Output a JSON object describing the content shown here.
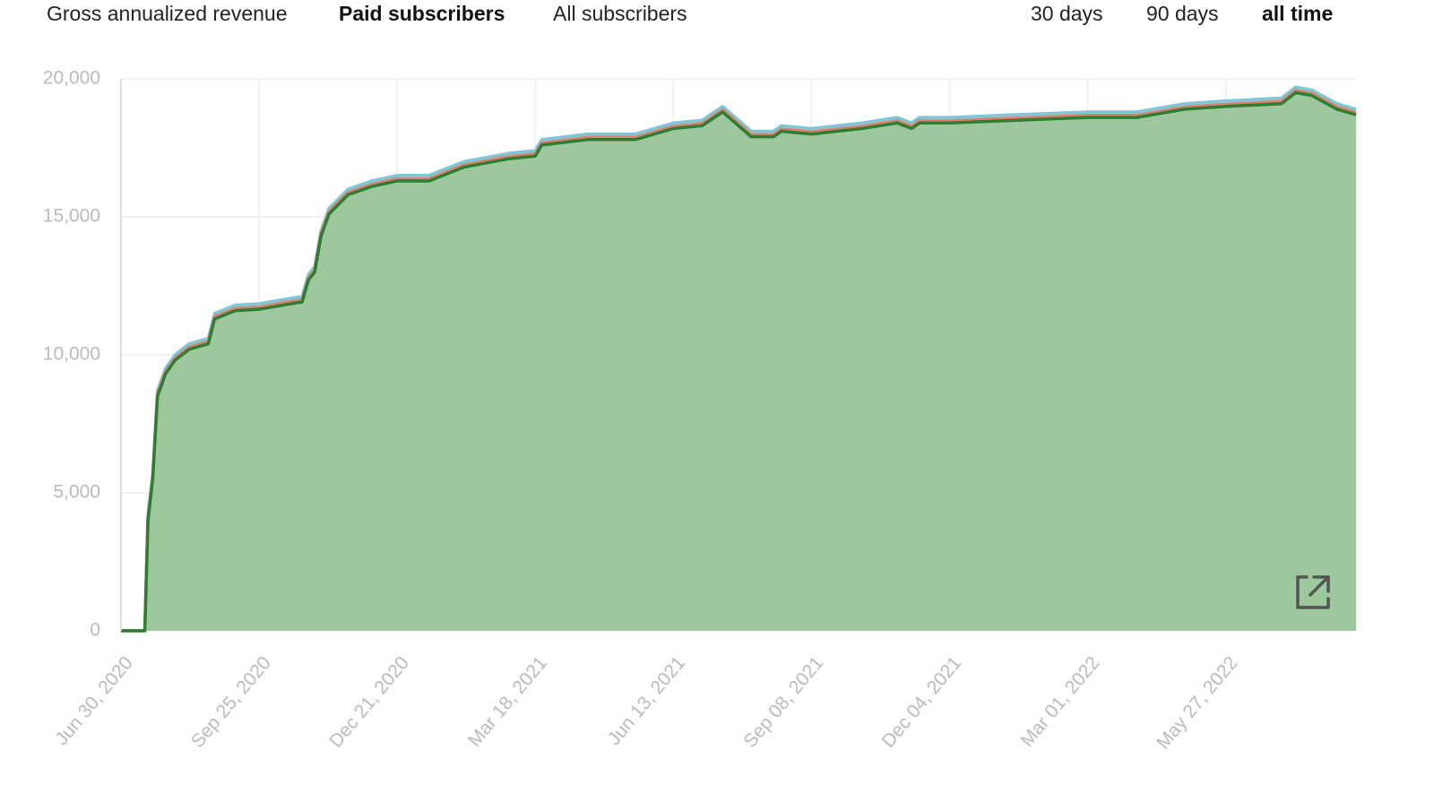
{
  "tabs": {
    "metrics": [
      "Gross annualized revenue",
      "Paid subscribers",
      "All subscribers"
    ],
    "ranges": [
      "30 days",
      "90 days",
      "all time"
    ]
  },
  "chart_data": {
    "type": "area",
    "x": [
      "2020-06-30",
      "2020-07-15",
      "2020-07-17",
      "2020-07-20",
      "2020-07-23",
      "2020-07-28",
      "2020-08-03",
      "2020-08-12",
      "2020-08-24",
      "2020-08-28",
      "2020-09-10",
      "2020-09-25",
      "2020-10-20",
      "2020-10-22",
      "2020-10-26",
      "2020-10-30",
      "2020-11-03",
      "2020-11-08",
      "2020-11-20",
      "2020-12-05",
      "2020-12-21",
      "2021-01-10",
      "2021-02-01",
      "2021-03-01",
      "2021-03-18",
      "2021-03-22",
      "2021-04-20",
      "2021-05-20",
      "2021-06-13",
      "2021-07-01",
      "2021-07-14",
      "2021-07-22",
      "2021-08-01",
      "2021-08-15",
      "2021-08-20",
      "2021-09-08",
      "2021-10-10",
      "2021-11-01",
      "2021-11-10",
      "2021-11-15",
      "2021-12-04",
      "2022-01-15",
      "2022-03-01",
      "2022-04-01",
      "2022-05-01",
      "2022-05-27",
      "2022-07-01",
      "2022-07-10",
      "2022-07-20",
      "2022-08-05",
      "2022-08-17"
    ],
    "series": [
      {
        "color": "#2e7d32",
        "fill": "#9dc89d",
        "values": [
          0,
          0,
          4000,
          5500,
          8500,
          9300,
          9800,
          10200,
          10400,
          11300,
          11600,
          11650,
          11900,
          11900,
          12700,
          13000,
          14300,
          15100,
          15800,
          16100,
          16300,
          16300,
          16800,
          17100,
          17200,
          17600,
          17800,
          17800,
          18200,
          18300,
          18800,
          18400,
          17900,
          17900,
          18100,
          18000,
          18200,
          18400,
          18200,
          18400,
          18400,
          18500,
          18600,
          18600,
          18900,
          19000,
          19100,
          19500,
          19400,
          18900,
          18700
        ]
      },
      {
        "color": "#d9826e",
        "fill": "#e8b3a6",
        "values": [
          0,
          0,
          80,
          80,
          80,
          80,
          80,
          80,
          80,
          80,
          80,
          80,
          80,
          80,
          80,
          80,
          80,
          80,
          80,
          80,
          80,
          80,
          80,
          80,
          80,
          80,
          80,
          80,
          80,
          80,
          80,
          80,
          80,
          80,
          80,
          80,
          80,
          80,
          80,
          80,
          80,
          80,
          80,
          80,
          80,
          80,
          80,
          80,
          80,
          80,
          80
        ]
      },
      {
        "color": "#7fc6d6",
        "fill": "#b7dfe8",
        "values": [
          0,
          0,
          120,
          120,
          120,
          120,
          120,
          120,
          120,
          120,
          120,
          120,
          120,
          120,
          120,
          120,
          120,
          120,
          120,
          120,
          120,
          120,
          120,
          120,
          120,
          120,
          120,
          120,
          120,
          120,
          120,
          120,
          120,
          120,
          120,
          120,
          120,
          120,
          120,
          120,
          120,
          120,
          120,
          120,
          120,
          120,
          120,
          120,
          120,
          120,
          120
        ]
      }
    ],
    "xlim": [
      "2020-06-30",
      "2022-08-17"
    ],
    "xticks": [
      {
        "value": "2020-06-30",
        "label": "Jun 30, 2020"
      },
      {
        "value": "2020-09-25",
        "label": "Sep 25, 2020"
      },
      {
        "value": "2020-12-21",
        "label": "Dec 21, 2020"
      },
      {
        "value": "2021-03-18",
        "label": "Mar 18, 2021"
      },
      {
        "value": "2021-06-13",
        "label": "Jun 13, 2021"
      },
      {
        "value": "2021-09-08",
        "label": "Sep 08, 2021"
      },
      {
        "value": "2021-12-04",
        "label": "Dec 04, 2021"
      },
      {
        "value": "2022-03-01",
        "label": "Mar 01, 2022"
      },
      {
        "value": "2022-05-27",
        "label": "May 27, 2022"
      }
    ],
    "ylim": [
      0,
      20000
    ],
    "yticks": [
      0,
      {
        "value": 5000,
        "label": "5,000"
      },
      {
        "value": 10000,
        "label": "10,000"
      },
      {
        "value": 15000,
        "label": "15,000"
      },
      {
        "value": 20000,
        "label": "20,000"
      }
    ],
    "grid": true,
    "stacked": true
  }
}
